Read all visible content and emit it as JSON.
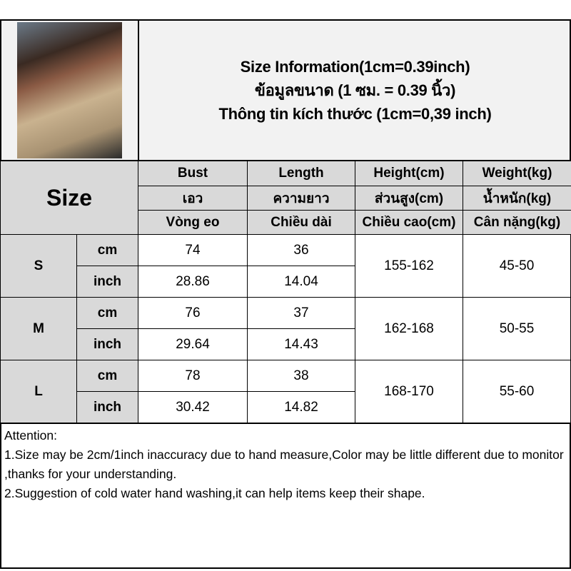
{
  "title_lines": [
    "Size Information(1cm=0.39inch)",
    "ข้อมูลขนาด (1 ซม. = 0.39 นิ้ว)",
    "Thông tin kích thước (1cm=0,39 inch)"
  ],
  "size_header": "Size",
  "columns": [
    {
      "en": "Bust",
      "th": "เอว",
      "vi": "Vòng eo"
    },
    {
      "en": "Length",
      "th": "ความยาว",
      "vi": "Chiều dài"
    },
    {
      "en": "Height(cm)",
      "th": "ส่วนสูง(cm)",
      "vi": "Chiều cao(cm)"
    },
    {
      "en": "Weight(kg)",
      "th": "น้ำหนัก(kg)",
      "vi": "Cân nặng(kg)"
    }
  ],
  "unit_cm": "cm",
  "unit_inch": "inch",
  "rows": [
    {
      "size": "S",
      "cm": [
        "74",
        "36"
      ],
      "inch": [
        "28.86",
        "14.04"
      ],
      "height": "155-162",
      "weight": "45-50"
    },
    {
      "size": "M",
      "cm": [
        "76",
        "37"
      ],
      "inch": [
        "29.64",
        "14.43"
      ],
      "height": "162-168",
      "weight": "50-55"
    },
    {
      "size": "L",
      "cm": [
        "78",
        "38"
      ],
      "inch": [
        "30.42",
        "14.82"
      ],
      "height": "168-170",
      "weight": "55-60"
    }
  ],
  "attention": [
    "Attention:",
    "1.Size may be 2cm/1inch inaccuracy due to hand measure,Color may be little different due to monitor ,thanks for your understanding.",
    "2.Suggestion of cold water hand washing,it can help items keep their shape."
  ]
}
